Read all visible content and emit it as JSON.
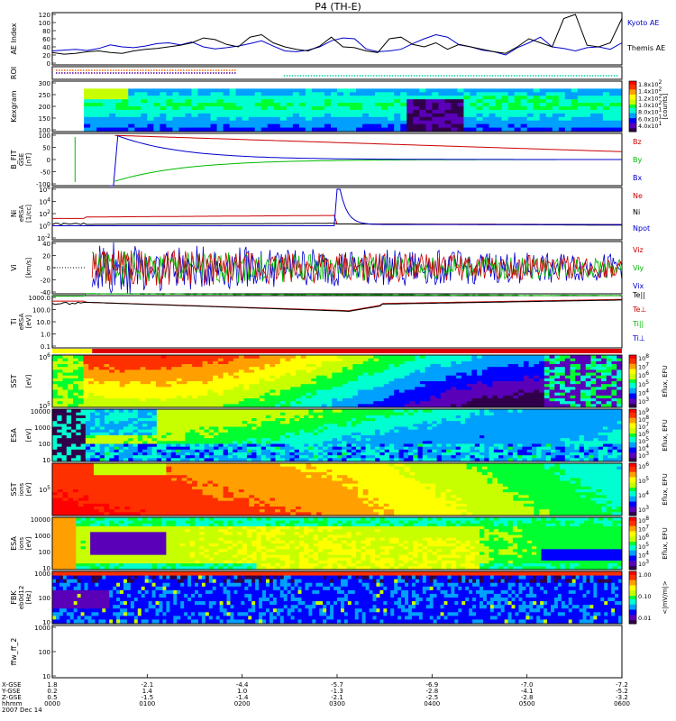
{
  "title": "P4 (TH-E)",
  "chart_data": {
    "type": "multi-panel time series / spectrogram",
    "date": "2007 Dec 14",
    "panels": [
      {
        "id": "ae",
        "ylabel": "AE Index",
        "unit": "",
        "yticks": [
          "120",
          "100",
          "80",
          "60",
          "40",
          "20",
          "0"
        ],
        "series": [
          {
            "name": "Kyoto AE",
            "color": "#0000cc",
            "values": [
              30,
              32,
              34,
              31,
              36,
              45,
              40,
              38,
              42,
              48,
              50,
              45,
              52,
              40,
              35,
              38,
              42,
              48,
              55,
              42,
              30,
              28,
              32,
              40,
              55,
              62,
              60,
              35,
              28,
              30,
              34,
              48,
              60,
              70,
              64,
              45,
              40,
              32,
              28,
              20,
              38,
              50,
              64,
              40,
              36,
              30,
              38,
              40,
              34,
              50
            ]
          },
          {
            "name": "Themis AE",
            "color": "#000000",
            "values": [
              26,
              22,
              24,
              28,
              30,
              26,
              24,
              30,
              34,
              36,
              40,
              44,
              50,
              62,
              58,
              46,
              40,
              64,
              70,
              50,
              40,
              34,
              30,
              42,
              64,
              40,
              38,
              30,
              26,
              60,
              64,
              46,
              40,
              50,
              34,
              46,
              40,
              34,
              28,
              24,
              40,
              60,
              50,
              40,
              110,
              120,
              44,
              40,
              50,
              110
            ]
          }
        ]
      },
      {
        "id": "roi",
        "ylabel": "ROI",
        "unit": ""
      },
      {
        "id": "kp",
        "ylabel": "Kexgram",
        "unit": "",
        "yticks": [
          "300",
          "250",
          "200",
          "150",
          "100"
        ],
        "colorbar": [
          "1.8x10^2",
          "1.4x10^2",
          "1.2x10^2",
          "1.0x10^2",
          "8.0x10^1",
          "6.0x10^1",
          "4.0x10^1"
        ],
        "colorbar_label": "[counts]"
      },
      {
        "id": "b",
        "ylabel": "B_FIT",
        "unit": "[nT]",
        "sub": "GSE",
        "yticks": [
          "100",
          "50",
          "0",
          "-50",
          "-100"
        ],
        "legend": [
          {
            "name": "Bz",
            "color": "#cc0000"
          },
          {
            "name": "By",
            "color": "#00bb00"
          },
          {
            "name": "Bx",
            "color": "#0000cc"
          }
        ]
      },
      {
        "id": "ni",
        "ylabel": "Ni",
        "unit": "[1/cc]",
        "sub": "eRSA",
        "yticks": [
          "10^6",
          "10^4",
          "10^2",
          "10^0",
          "10^-2"
        ],
        "legend": [
          {
            "name": "Ne",
            "color": "#cc0000"
          },
          {
            "name": "Ni",
            "color": "#000000"
          },
          {
            "name": "Npot",
            "color": "#0000cc"
          }
        ]
      },
      {
        "id": "vi",
        "ylabel": "Vi",
        "unit": "[km/s]",
        "yticks": [
          "40",
          "20",
          "0",
          "-20",
          "-40"
        ],
        "legend": [
          {
            "name": "Viz",
            "color": "#cc0000"
          },
          {
            "name": "Viy",
            "color": "#00bb00"
          },
          {
            "name": "Vix",
            "color": "#0000cc"
          }
        ]
      },
      {
        "id": "ti",
        "ylabel": "Ti",
        "unit": "[eV]",
        "sub": "eRSA",
        "yticks": [
          "1000.0",
          "100.0",
          "10.0",
          "1.0",
          "0.1"
        ],
        "legend": [
          {
            "name": "Te||",
            "color": "#000000"
          },
          {
            "name": "Te⊥",
            "color": "#cc0000"
          },
          {
            "name": "Ti||",
            "color": "#00bb00"
          },
          {
            "name": "Ti⊥",
            "color": "#0000cc"
          }
        ]
      },
      {
        "id": "sst_e",
        "ylabel": "SST",
        "unit": "[eV]",
        "yticks": [
          "10^6",
          "10^5"
        ],
        "colorbar": [
          "10^8",
          "10^7",
          "10^6",
          "10^5",
          "10^4",
          "10^3"
        ],
        "colorbar_label": "Eflux, EFU"
      },
      {
        "id": "esa_e",
        "ylabel": "ESA",
        "unit": "[eV]",
        "yticks": [
          "10000",
          "1000",
          "100",
          "10"
        ],
        "colorbar": [
          "10^9",
          "10^8",
          "10^7",
          "10^6",
          "10^5",
          "10^4",
          "10^3"
        ],
        "colorbar_label": "Eflux, EFU"
      },
      {
        "id": "sst_i",
        "ylabel": "SST",
        "unit": "[eV]",
        "sub": "ions",
        "yticks": [
          "10^5"
        ],
        "colorbar": [
          "10^6",
          "10^5",
          "10^4",
          "10^3"
        ],
        "colorbar_label": "Eflux, EFU"
      },
      {
        "id": "esa_i",
        "ylabel": "ESA",
        "unit": "[eV]",
        "sub": "ions",
        "yticks": [
          "10000",
          "1000",
          "100",
          "10"
        ],
        "colorbar": [
          "10^8",
          "10^7",
          "10^6",
          "10^5",
          "10^4",
          "10^3"
        ],
        "colorbar_label": "Eflux, EFU"
      },
      {
        "id": "fbk",
        "ylabel": "FBK",
        "unit": "[Hz]",
        "sub": "eb0d12",
        "yticks": [
          "1000",
          "100",
          "10"
        ],
        "colorbar": [
          "1.00",
          "0.10",
          "0.01"
        ],
        "colorbar_label": "<|mV/m|>"
      },
      {
        "id": "ffw",
        "ylabel": "ffw_ff_2",
        "unit": "",
        "yticks": [
          "1000",
          "100",
          "10"
        ]
      }
    ],
    "xaxis": {
      "rows": [
        {
          "label": "X-GSE",
          "values": [
            "1.8",
            "-2.1",
            "-4.4",
            "-5.7",
            "-6.9",
            "-7.0",
            "-7.2"
          ]
        },
        {
          "label": "Y-GSE",
          "values": [
            "0.2",
            "1.4",
            "1.0",
            "-1.3",
            "-2.8",
            "-4.1",
            "-5.2"
          ]
        },
        {
          "label": "Z-GSE",
          "values": [
            "0.5",
            "-1.5",
            "-1.4",
            "-2.1",
            "-2.5",
            "-2.8",
            "-3.2"
          ]
        },
        {
          "label": "hhmm",
          "values": [
            "0000",
            "0100",
            "0200",
            "0300",
            "0400",
            "0500",
            "0600"
          ]
        }
      ]
    },
    "colors": {
      "rainbow": [
        "#30004a",
        "#5a00b8",
        "#0000ff",
        "#00a0ff",
        "#00ffd0",
        "#00ff30",
        "#c8ff00",
        "#ffff00",
        "#ffa000",
        "#ff3000",
        "#ff0000"
      ]
    }
  }
}
